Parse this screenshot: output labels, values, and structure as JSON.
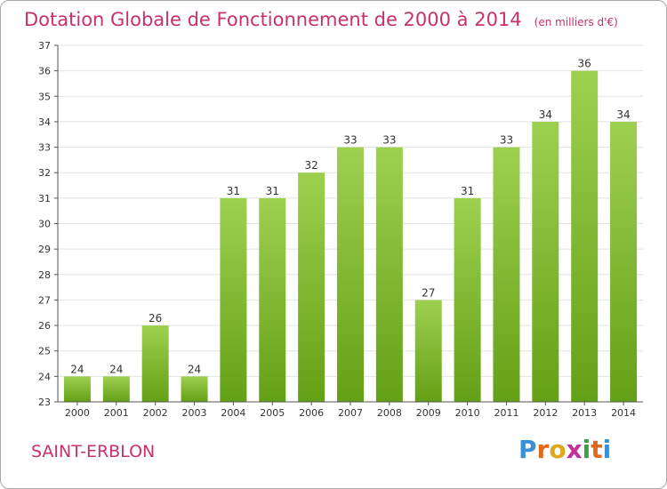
{
  "header": {
    "title": "Dotation Globale de Fonctionnement de 2000 à 2014",
    "unit": "(en milliers d'€)"
  },
  "footer": {
    "commune": "SAINT-ERBLON",
    "logo_text": "Proxiti"
  },
  "colors": {
    "title": "#c8306e",
    "bar_light": "#9ed050",
    "bar_dark": "#64a016",
    "grid": "#e2e2e2",
    "axis": "#555555"
  },
  "chart_data": {
    "type": "bar",
    "title": "Dotation Globale de Fonctionnement de 2000 à 2014",
    "subtitle": "(en milliers d'€)",
    "categories": [
      "2000",
      "2001",
      "2002",
      "2003",
      "2004",
      "2005",
      "2006",
      "2007",
      "2008",
      "2009",
      "2010",
      "2011",
      "2012",
      "2013",
      "2014"
    ],
    "values": [
      24,
      24,
      26,
      24,
      31,
      31,
      32,
      33,
      33,
      27,
      31,
      33,
      34,
      36,
      34
    ],
    "value_labels": [
      "24",
      "24",
      "26",
      "24",
      "31",
      "31",
      "32",
      "33",
      "33",
      "27",
      "31",
      "33",
      "34",
      "36",
      "34"
    ],
    "ylim": [
      23,
      37
    ],
    "yticks": [
      23,
      24,
      25,
      26,
      27,
      28,
      29,
      30,
      31,
      32,
      33,
      34,
      35,
      36,
      37
    ],
    "xlabel": "",
    "ylabel": "",
    "grid": true,
    "legend": "none"
  }
}
